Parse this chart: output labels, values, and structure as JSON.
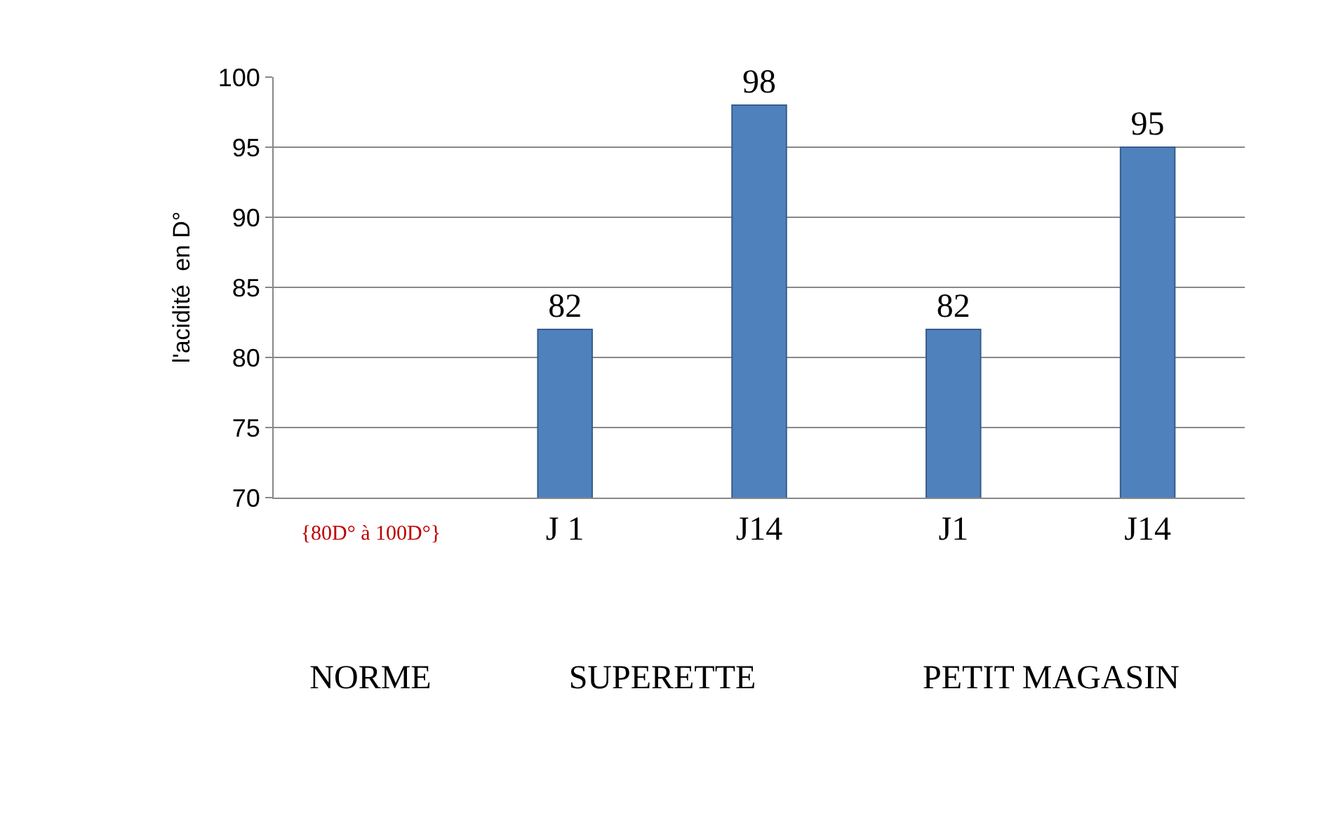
{
  "chart_data": {
    "type": "bar",
    "ylabel": "l'acidité  en D°",
    "categories": [
      "{80D° à 100D°}",
      "J 1",
      "J14",
      "J1",
      "J14"
    ],
    "values": [
      null,
      82,
      98,
      82,
      95
    ],
    "color": "#4f81bd",
    "data_labels": true,
    "ylim": [
      70,
      100
    ],
    "yticks": [
      70,
      75,
      80,
      85,
      90,
      95,
      100
    ],
    "grid": "y",
    "legend": false,
    "annotations": [
      "NORME",
      "SUPERETTE",
      "PETIT MAGASIN"
    ]
  }
}
